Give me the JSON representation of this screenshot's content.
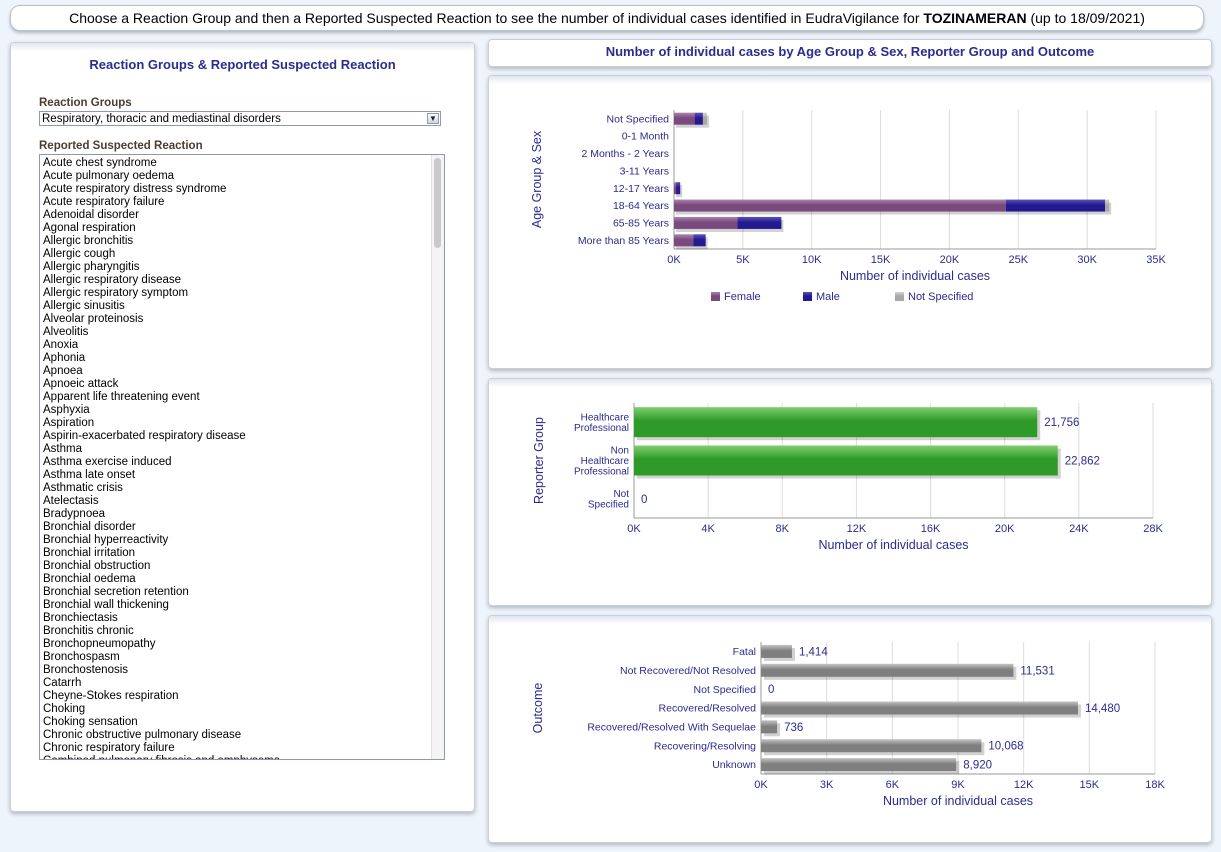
{
  "header": {
    "prefix": "Choose a Reaction Group and then a Reported Suspected Reaction to see the number of individual cases identified in EudraVigilance for",
    "product": "TOZINAMERAN",
    "suffix": "(up to 18/09/2021)"
  },
  "left": {
    "title": "Reaction Groups & Reported Suspected Reaction",
    "groups_label": "Reaction Groups",
    "group_value": "Respiratory, thoracic and mediastinal disorders",
    "reactions_label": "Reported Suspected Reaction",
    "reactions": [
      "Acute chest syndrome",
      "Acute pulmonary oedema",
      "Acute respiratory distress syndrome",
      "Acute respiratory failure",
      "Adenoidal disorder",
      "Agonal respiration",
      "Allergic bronchitis",
      "Allergic cough",
      "Allergic pharyngitis",
      "Allergic respiratory disease",
      "Allergic respiratory symptom",
      "Allergic sinusitis",
      "Alveolar proteinosis",
      "Alveolitis",
      "Anoxia",
      "Aphonia",
      "Apnoea",
      "Apnoeic attack",
      "Apparent life threatening event",
      "Asphyxia",
      "Aspiration",
      "Aspirin-exacerbated respiratory disease",
      "Asthma",
      "Asthma exercise induced",
      "Asthma late onset",
      "Asthmatic crisis",
      "Atelectasis",
      "Bradypnoea",
      "Bronchial disorder",
      "Bronchial hyperreactivity",
      "Bronchial irritation",
      "Bronchial obstruction",
      "Bronchial oedema",
      "Bronchial secretion retention",
      "Bronchial wall thickening",
      "Bronchiectasis",
      "Bronchitis chronic",
      "Bronchopneumopathy",
      "Bronchospasm",
      "Bronchostenosis",
      "Catarrh",
      "Cheyne-Stokes respiration",
      "Choking",
      "Choking sensation",
      "Chronic obstructive pulmonary disease",
      "Chronic respiratory failure",
      "Combined pulmonary fibrosis and emphysema"
    ]
  },
  "right": {
    "title": "Number of individual cases by Age Group & Sex, Reporter Group and Outcome"
  },
  "colors": {
    "female": "#7a4a7e",
    "male": "#231a8f",
    "not_specified": "#a8a8a8",
    "reporter": "#2f9a28",
    "outcome": "#7f7f7f",
    "text": "#2a2c8f"
  },
  "chart_data": [
    {
      "type": "bar",
      "orientation": "horizontal",
      "stacked": true,
      "ylabel": "Age Group & Sex",
      "xlabel": "Number of individual cases",
      "categories": [
        "Not Specified",
        "0-1 Month",
        "2 Months - 2 Years",
        "3-11 Years",
        "12-17 Years",
        "18-64 Years",
        "65-85 Years",
        "More than 85 Years"
      ],
      "xlim": [
        0,
        35000
      ],
      "xticks": [
        "0K",
        "5K",
        "10K",
        "15K",
        "20K",
        "25K",
        "30K",
        "35K"
      ],
      "legend": "bottom",
      "series": [
        {
          "name": "Female",
          "values": [
            1500,
            0,
            0,
            0,
            150,
            24100,
            4600,
            1400
          ]
        },
        {
          "name": "Male",
          "values": [
            600,
            0,
            0,
            0,
            300,
            7200,
            3200,
            900
          ]
        },
        {
          "name": "Not Specified",
          "values": [
            300,
            0,
            0,
            0,
            0,
            300,
            0,
            0
          ]
        }
      ]
    },
    {
      "type": "bar",
      "orientation": "horizontal",
      "ylabel": "Reporter Group",
      "xlabel": "Number of individual cases",
      "categories": [
        [
          "Healthcare",
          "Professional"
        ],
        [
          "Non",
          "Healthcare",
          "Professional"
        ],
        [
          "Not",
          "Specified"
        ]
      ],
      "values": [
        21756,
        22862,
        0
      ],
      "value_labels": [
        "21,756",
        "22,862",
        "0"
      ],
      "xlim": [
        0,
        28000
      ],
      "xticks": [
        "0K",
        "4K",
        "8K",
        "12K",
        "16K",
        "20K",
        "24K",
        "28K"
      ]
    },
    {
      "type": "bar",
      "orientation": "horizontal",
      "ylabel": "Outcome",
      "xlabel": "Number of individual cases",
      "categories": [
        "Fatal",
        "Not Recovered/Not Resolved",
        "Not Specified",
        "Recovered/Resolved",
        "Recovered/Resolved With Sequelae",
        "Recovering/Resolving",
        "Unknown"
      ],
      "values": [
        1414,
        11531,
        0,
        14480,
        736,
        10068,
        8920
      ],
      "value_labels": [
        "1,414",
        "11,531",
        "0",
        "14,480",
        "736",
        "10,068",
        "8,920"
      ],
      "xlim": [
        0,
        18000
      ],
      "xticks": [
        "0K",
        "3K",
        "6K",
        "9K",
        "12K",
        "15K",
        "18K"
      ]
    }
  ]
}
